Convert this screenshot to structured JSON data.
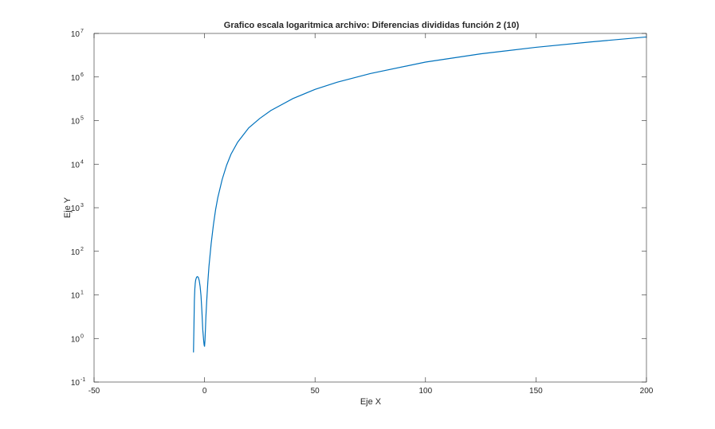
{
  "chart_data": {
    "type": "line",
    "title": "Grafico escala logaritmica archivo: Diferencias divididas función 2 (10)",
    "xlabel": "Eje X",
    "ylabel": "Eje Y",
    "xlim": [
      -50,
      200
    ],
    "ylim": [
      0.1,
      10000000
    ],
    "yscale": "log",
    "grid": false,
    "box": true,
    "line_color": "#0072bd",
    "xticks": [
      {
        "value": -50,
        "label": "-50"
      },
      {
        "value": 0,
        "label": "0"
      },
      {
        "value": 50,
        "label": "50"
      },
      {
        "value": 100,
        "label": "100"
      },
      {
        "value": 150,
        "label": "150"
      },
      {
        "value": 200,
        "label": "200"
      }
    ],
    "yticks": [
      {
        "value": 0.1,
        "base": "10",
        "exp": "-1"
      },
      {
        "value": 1,
        "base": "10",
        "exp": "0"
      },
      {
        "value": 10,
        "base": "10",
        "exp": "1"
      },
      {
        "value": 100,
        "base": "10",
        "exp": "2"
      },
      {
        "value": 1000,
        "base": "10",
        "exp": "3"
      },
      {
        "value": 10000,
        "base": "10",
        "exp": "4"
      },
      {
        "value": 100000,
        "base": "10",
        "exp": "5"
      },
      {
        "value": 1000000,
        "base": "10",
        "exp": "6"
      },
      {
        "value": 10000000,
        "base": "10",
        "exp": "7"
      }
    ],
    "series": [
      {
        "x": [
          -5,
          -4.8,
          -4.6,
          -4.4,
          -4.2,
          -4,
          -3.6,
          -3.2,
          -2.8,
          -2.4,
          -2,
          -1.6,
          -1.2,
          -0.8,
          -0.4,
          -0.2,
          0,
          0.2,
          0.4,
          0.6,
          1,
          1.5,
          2,
          3,
          4,
          5,
          6,
          8,
          10,
          12,
          15,
          20,
          25,
          30,
          40,
          50,
          60,
          75,
          100,
          125,
          150,
          175,
          200
        ],
        "y": [
          0.48,
          1.8,
          7.5,
          13.5,
          18.5,
          22,
          25.5,
          26.3,
          25,
          21.2,
          15.6,
          9.6,
          4.3,
          1.6,
          0.9,
          0.72,
          0.65,
          0.9,
          1.6,
          3.0,
          7.5,
          20,
          45,
          150,
          400,
          900,
          1700,
          4500,
          9500,
          17000,
          32000,
          68000,
          112000,
          170000,
          320000,
          520000,
          760000,
          1200000,
          2200000,
          3400000,
          4800000,
          6400000,
          8300000
        ]
      }
    ]
  }
}
